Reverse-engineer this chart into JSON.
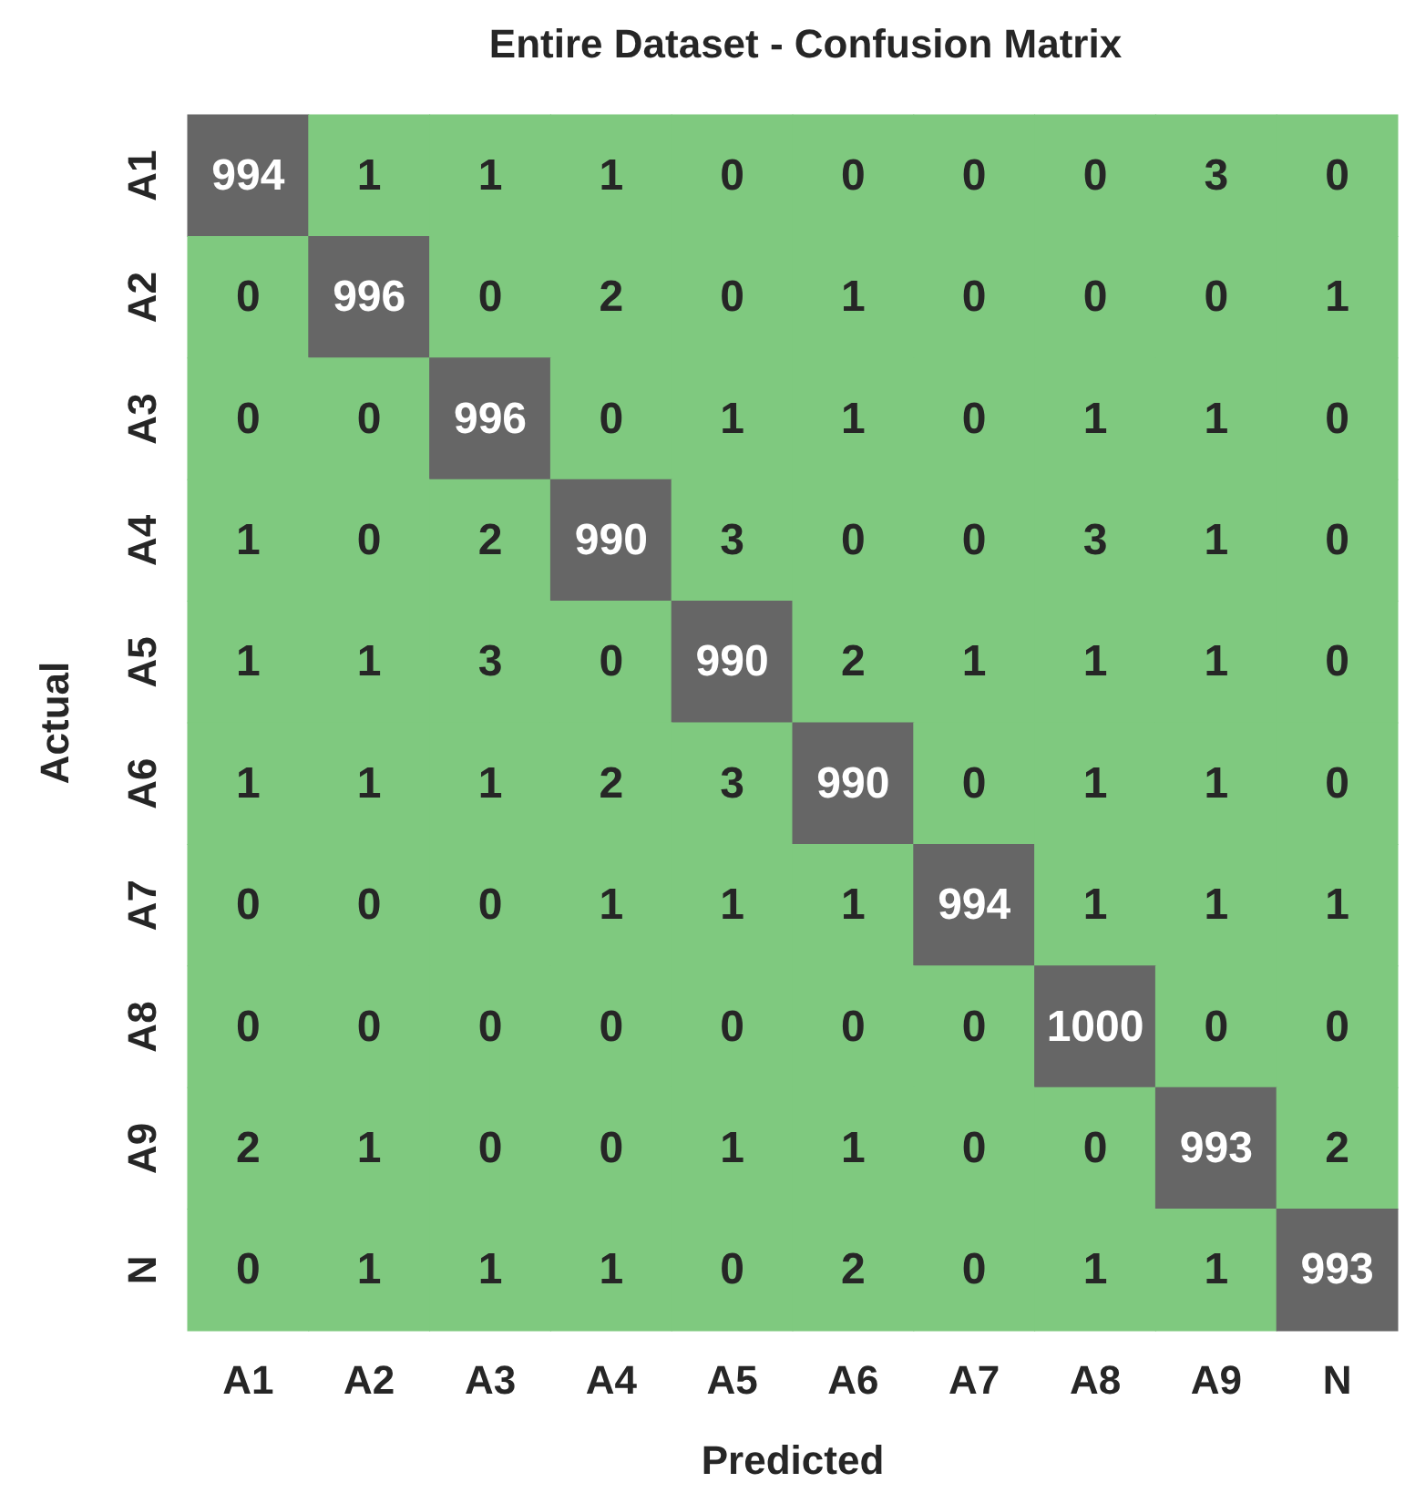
{
  "chart_data": {
    "type": "heatmap",
    "title": "Entire Dataset - Confusion Matrix",
    "xlabel": "Predicted",
    "ylabel": "Actual",
    "categories": [
      "A1",
      "A2",
      "A3",
      "A4",
      "A5",
      "A6",
      "A7",
      "A8",
      "A9",
      "N"
    ],
    "y_categories": [
      "A1",
      "A2",
      "A3",
      "A4",
      "A5",
      "A6",
      "A7",
      "A8",
      "A9",
      "N"
    ],
    "colors": [
      "#7fc97f",
      "#666666"
    ],
    "data_labels": true,
    "cells": [
      [
        994,
        1,
        1,
        1,
        0,
        0,
        0,
        0,
        3,
        0
      ],
      [
        0,
        996,
        0,
        2,
        0,
        1,
        0,
        0,
        0,
        1
      ],
      [
        0,
        0,
        996,
        0,
        1,
        1,
        0,
        1,
        1,
        0
      ],
      [
        1,
        0,
        2,
        990,
        3,
        0,
        0,
        3,
        1,
        0
      ],
      [
        1,
        1,
        3,
        0,
        990,
        2,
        1,
        1,
        1,
        0
      ],
      [
        1,
        1,
        1,
        2,
        3,
        990,
        0,
        1,
        1,
        0
      ],
      [
        0,
        0,
        0,
        1,
        1,
        1,
        994,
        1,
        1,
        1
      ],
      [
        0,
        0,
        0,
        0,
        0,
        0,
        0,
        1000,
        0,
        0
      ],
      [
        2,
        1,
        0,
        0,
        1,
        1,
        0,
        0,
        993,
        2
      ],
      [
        0,
        1,
        1,
        1,
        0,
        2,
        0,
        1,
        1,
        993
      ]
    ]
  }
}
